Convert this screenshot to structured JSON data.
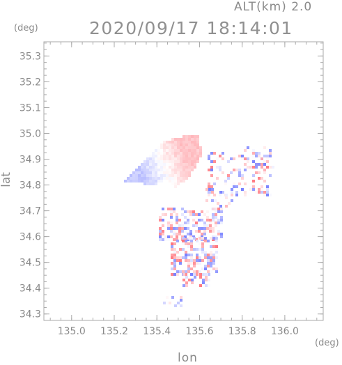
{
  "header": {
    "alt_label": "ALT(km)  2.0",
    "timestamp": "2020/09/17  18:14:01"
  },
  "chart_data": {
    "type": "heatmap",
    "xlabel": "lon",
    "ylabel": "lat",
    "x_unit": "(deg)",
    "y_unit": "(deg)",
    "xlim": [
      134.87,
      136.18
    ],
    "ylim": [
      34.275,
      35.355
    ],
    "x_ticks": [
      "135.0",
      "135.2",
      "135.4",
      "135.6",
      "135.8",
      "136.0"
    ],
    "x_tick_values": [
      135.0,
      135.2,
      135.4,
      135.6,
      135.8,
      136.0
    ],
    "y_ticks": [
      "34.3",
      "34.4",
      "34.5",
      "34.6",
      "34.7",
      "34.8",
      "34.9",
      "35.0",
      "35.1",
      "35.2",
      "35.3"
    ],
    "y_tick_values": [
      34.3,
      34.4,
      34.5,
      34.6,
      34.7,
      34.8,
      34.9,
      35.0,
      35.1,
      35.2,
      35.3
    ],
    "minor_step_x": 0.05,
    "minor_step_y": 0.025,
    "colors": {
      "positive": "#e8555f",
      "negative": "#5566e0",
      "frame": "#aaaaaa"
    },
    "regions": [
      {
        "kind": "smooth-west",
        "lon": [
          135.18,
          135.5
        ],
        "lat": [
          34.8,
          34.95
        ],
        "trend": "negative"
      },
      {
        "kind": "smooth-east",
        "lon": [
          135.45,
          135.62
        ],
        "lat": [
          34.83,
          35.0
        ],
        "trend": "positive"
      },
      {
        "kind": "speckle",
        "lon": [
          135.58,
          135.97
        ],
        "lat": [
          34.7,
          34.93
        ]
      },
      {
        "kind": "speckle",
        "lon": [
          135.4,
          135.67
        ],
        "lat": [
          34.58,
          34.71
        ]
      },
      {
        "kind": "speckle",
        "lon": [
          135.47,
          135.64
        ],
        "lat": [
          34.42,
          34.59
        ]
      },
      {
        "kind": "speckle",
        "lon": [
          135.42,
          135.52
        ],
        "lat": [
          34.34,
          34.37
        ]
      }
    ]
  }
}
